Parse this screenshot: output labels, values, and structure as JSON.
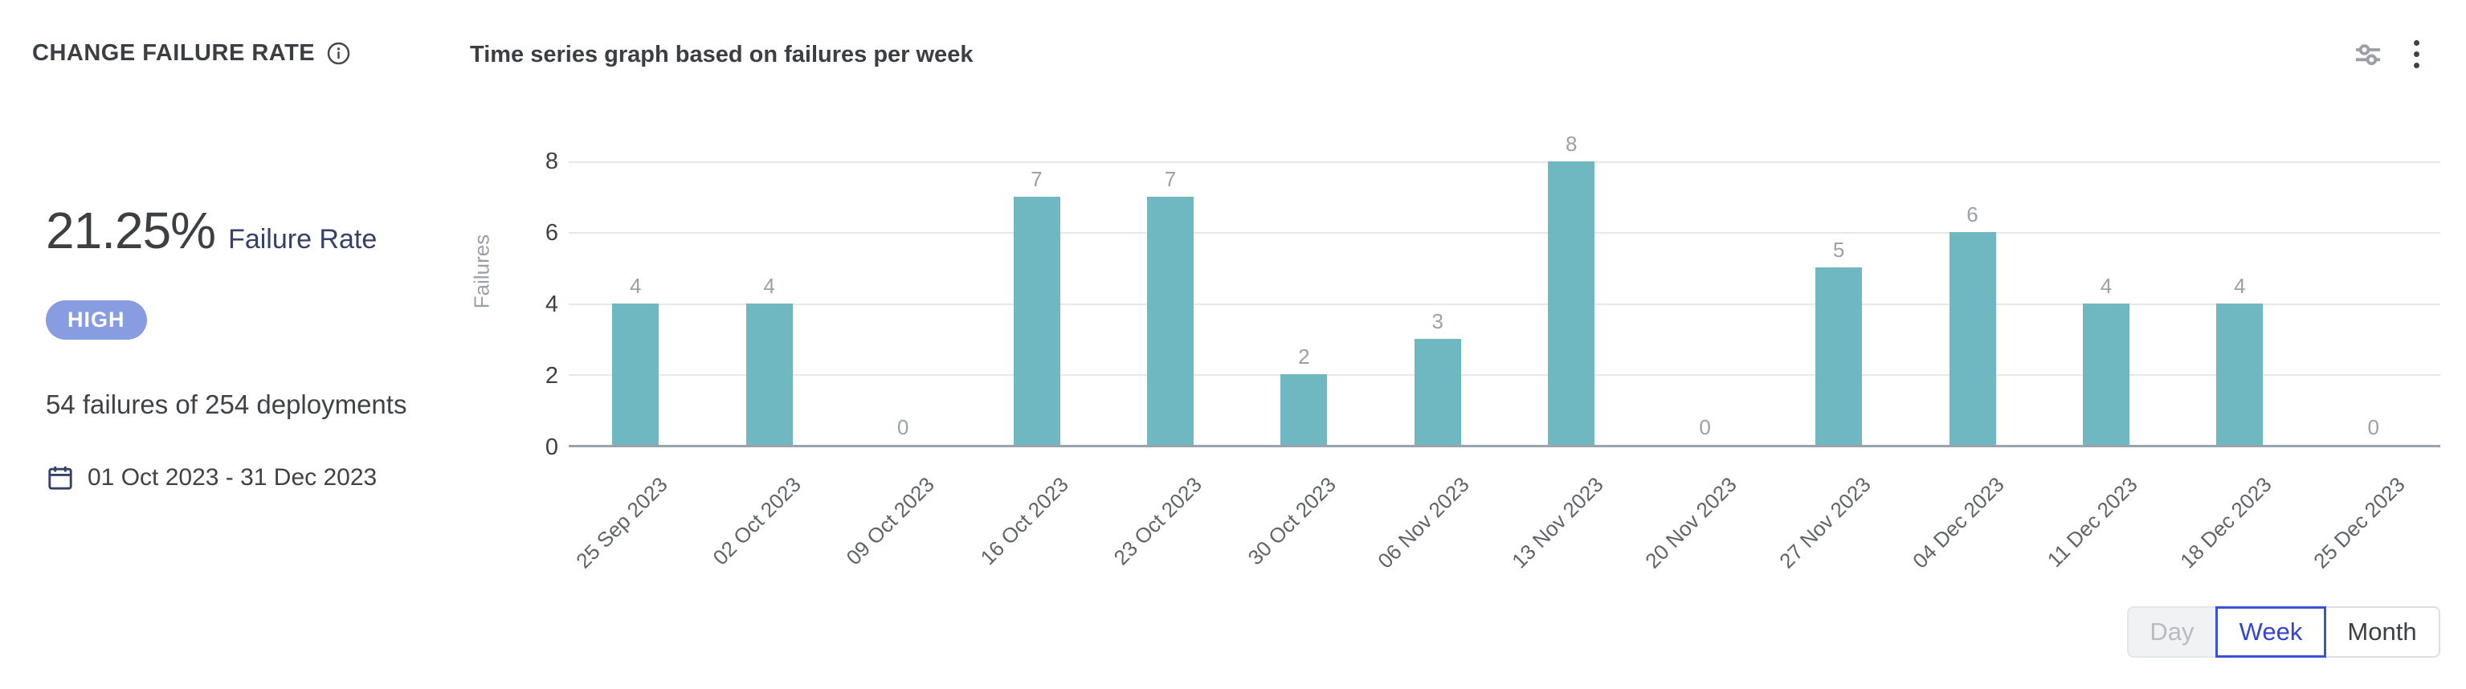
{
  "header": {
    "title": "CHANGE FAILURE RATE",
    "subtitle": "Time series graph based on failures per week"
  },
  "stats": {
    "rate_value": "21.25%",
    "rate_label": "Failure Rate",
    "severity": "HIGH",
    "summary": "54 failures of 254 deployments",
    "date_range": "01 Oct 2023 - 31 Dec 2023"
  },
  "icons": {
    "info": "info-icon",
    "calendar": "calendar-icon",
    "settings": "chart-settings-sliders-icon",
    "kebab": "kebab-menu-icon"
  },
  "colors": {
    "bar": "#6fb8c2",
    "badge_bg": "#889ce2",
    "accent_blue": "#3b51d8",
    "navy_text": "#344168",
    "gridline": "#e7e7e7",
    "axis_line": "#9aa2ad"
  },
  "chart_data": {
    "type": "bar",
    "title": "Time series graph based on failures per week",
    "categories": [
      "25 Sep 2023",
      "02 Oct 2023",
      "09 Oct 2023",
      "16 Oct 2023",
      "23 Oct 2023",
      "30 Oct 2023",
      "06 Nov 2023",
      "13 Nov 2023",
      "20 Nov 2023",
      "27 Nov 2023",
      "04 Dec 2023",
      "11 Dec 2023",
      "18 Dec 2023",
      "25 Dec 2023"
    ],
    "values": [
      4,
      4,
      0,
      7,
      7,
      2,
      3,
      8,
      0,
      5,
      6,
      4,
      4,
      0
    ],
    "xlabel": "",
    "ylabel": "Failures",
    "ylim": [
      0,
      8
    ],
    "y_ticks": [
      0,
      2,
      4,
      6,
      8
    ],
    "grid": true,
    "legend": false,
    "bar_color": "#6fb8c2",
    "value_labels": true
  },
  "controls": {
    "granularity": [
      {
        "label": "Day",
        "state": "disabled"
      },
      {
        "label": "Week",
        "state": "selected"
      },
      {
        "label": "Month",
        "state": "default"
      }
    ]
  }
}
